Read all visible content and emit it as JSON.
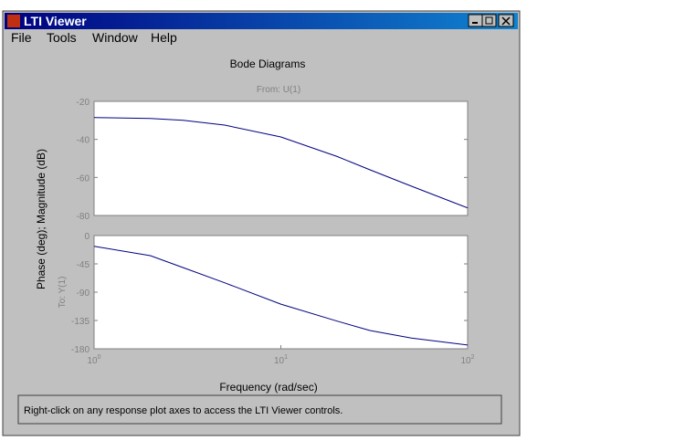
{
  "window": {
    "title": "LTI Viewer",
    "menu": [
      "File",
      "Tools",
      "Window",
      "Help"
    ]
  },
  "status": "Right-click on any response plot axes to access the LTI Viewer controls.",
  "chart_data": [
    {
      "type": "line",
      "title": "Bode Diagrams",
      "subtitle": "From: U(1)",
      "ylabel": "Phase (deg); Magnitude (dB)",
      "x": [
        1,
        2,
        3,
        5,
        10,
        20,
        30,
        50,
        100
      ],
      "xscale": "log",
      "xlim": [
        1,
        100
      ],
      "series": [
        {
          "name": "Magnitude",
          "color": "#000080",
          "values": [
            -28.5,
            -29,
            -30,
            -32.5,
            -38.7,
            -49,
            -56,
            -64.6,
            -76
          ]
        }
      ],
      "ylim": [
        -80,
        -20
      ],
      "yticks": [
        -80,
        -60,
        -40,
        -20
      ]
    },
    {
      "type": "line",
      "annotation": "To: Y(1)",
      "xlabel": "Frequency (rad/sec)",
      "x": [
        1,
        2,
        3,
        5,
        10,
        20,
        30,
        50,
        100
      ],
      "xscale": "log",
      "xlim": [
        1,
        100
      ],
      "xticks": [
        {
          "value": 1,
          "label": "10^0"
        },
        {
          "value": 10,
          "label": "10^1"
        },
        {
          "value": 100,
          "label": "10^2"
        }
      ],
      "series": [
        {
          "name": "Phase",
          "color": "#000080",
          "values": [
            -17,
            -32,
            -51,
            -75,
            -109,
            -136,
            -151,
            -163,
            -174
          ]
        }
      ],
      "ylim": [
        -180,
        0
      ],
      "yticks": [
        0,
        -45,
        -90,
        -135,
        -180
      ]
    }
  ]
}
